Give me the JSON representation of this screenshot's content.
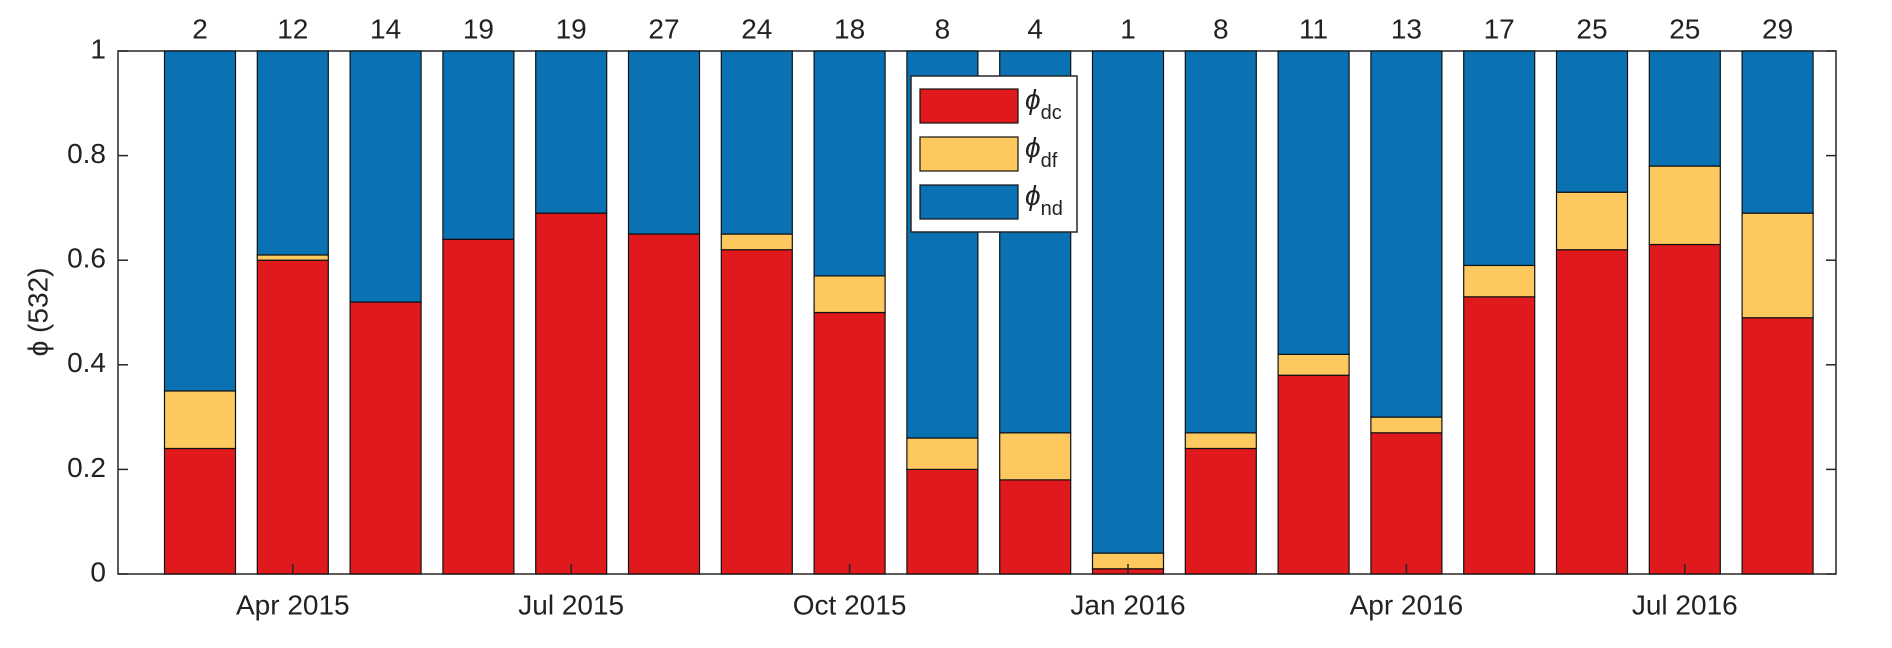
{
  "chart_data": {
    "type": "stacked_bar",
    "ylabel": "ϕ (532)",
    "categories": [
      null,
      "Apr 2015",
      null,
      null,
      "Jul 2015",
      null,
      null,
      "Oct 2015",
      null,
      null,
      "Jan 2016",
      null,
      null,
      "Apr 2016",
      null,
      null,
      "Jul 2016",
      null
    ],
    "annotations": [
      2,
      12,
      14,
      19,
      19,
      27,
      24,
      18,
      8,
      4,
      1,
      8,
      11,
      13,
      17,
      25,
      25,
      29
    ],
    "series": [
      {
        "name": "ϕdc",
        "color": "#e0191c",
        "values": [
          0.24,
          0.6,
          0.52,
          0.64,
          0.69,
          0.65,
          0.62,
          0.5,
          0.2,
          0.18,
          0.01,
          0.24,
          0.38,
          0.27,
          0.53,
          0.62,
          0.63,
          0.49
        ]
      },
      {
        "name": "ϕdf",
        "color": "#fdc95e",
        "values": [
          0.11,
          0.01,
          0,
          0,
          0,
          0,
          0.03,
          0.07,
          0.06,
          0.09,
          0.03,
          0.03,
          0.04,
          0.03,
          0.06,
          0.11,
          0.15,
          0.2
        ]
      },
      {
        "name": "ϕnd",
        "color": "#0a71b3",
        "values": [
          0.65,
          0.39,
          0.48,
          0.36,
          0.31,
          0.35,
          0.35,
          0.43,
          0.74,
          0.73,
          0.96,
          0.73,
          0.58,
          0.7,
          0.41,
          0.27,
          0.22,
          0.31
        ]
      }
    ],
    "ylim": [
      0,
      1
    ],
    "yticks": [
      0,
      0.2,
      0.4,
      0.6,
      0.8,
      1
    ],
    "legend": "top-center"
  }
}
